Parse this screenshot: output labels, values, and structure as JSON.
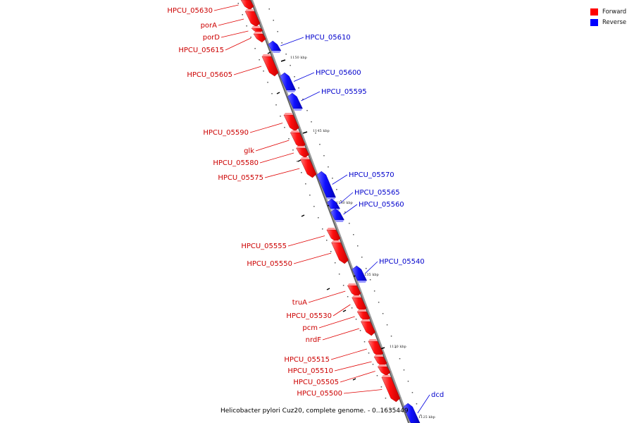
{
  "caption": "Helicobacter pylori Cuz20, complete genome. - 0..1635449",
  "legend": [
    {
      "label": "Forward",
      "color": "#ff0000"
    },
    {
      "label": "Reverse",
      "color": "#0000ff"
    }
  ],
  "colors": {
    "forward": "#ff0000",
    "reverse": "#0000ff",
    "forward_label": "#cc0000",
    "reverse_label": "#0000cc",
    "backbone": "#888888"
  },
  "ticks": [
    "1150 kbp",
    "1145 kbp",
    "1140 kbp",
    "1135 kbp",
    "1130 kbp",
    "1125 kbp"
  ],
  "forward_genes": [
    "HPCU_05630",
    "porA",
    "porD",
    "HPCU_05615",
    "HPCU_05605",
    "HPCU_05590",
    "glk",
    "HPCU_05580",
    "HPCU_05575",
    "HPCU_05555",
    "HPCU_05550",
    "truA",
    "HPCU_05530",
    "pcm",
    "nrdF",
    "HPCU_05515",
    "HPCU_05510",
    "HPCU_05505",
    "HPCU_05500"
  ],
  "reverse_genes": [
    "HPCU_05610",
    "HPCU_05600",
    "HPCU_05595",
    "HPCU_05570",
    "HPCU_05565",
    "HPCU_05560",
    "HPCU_05540",
    "dcd"
  ]
}
